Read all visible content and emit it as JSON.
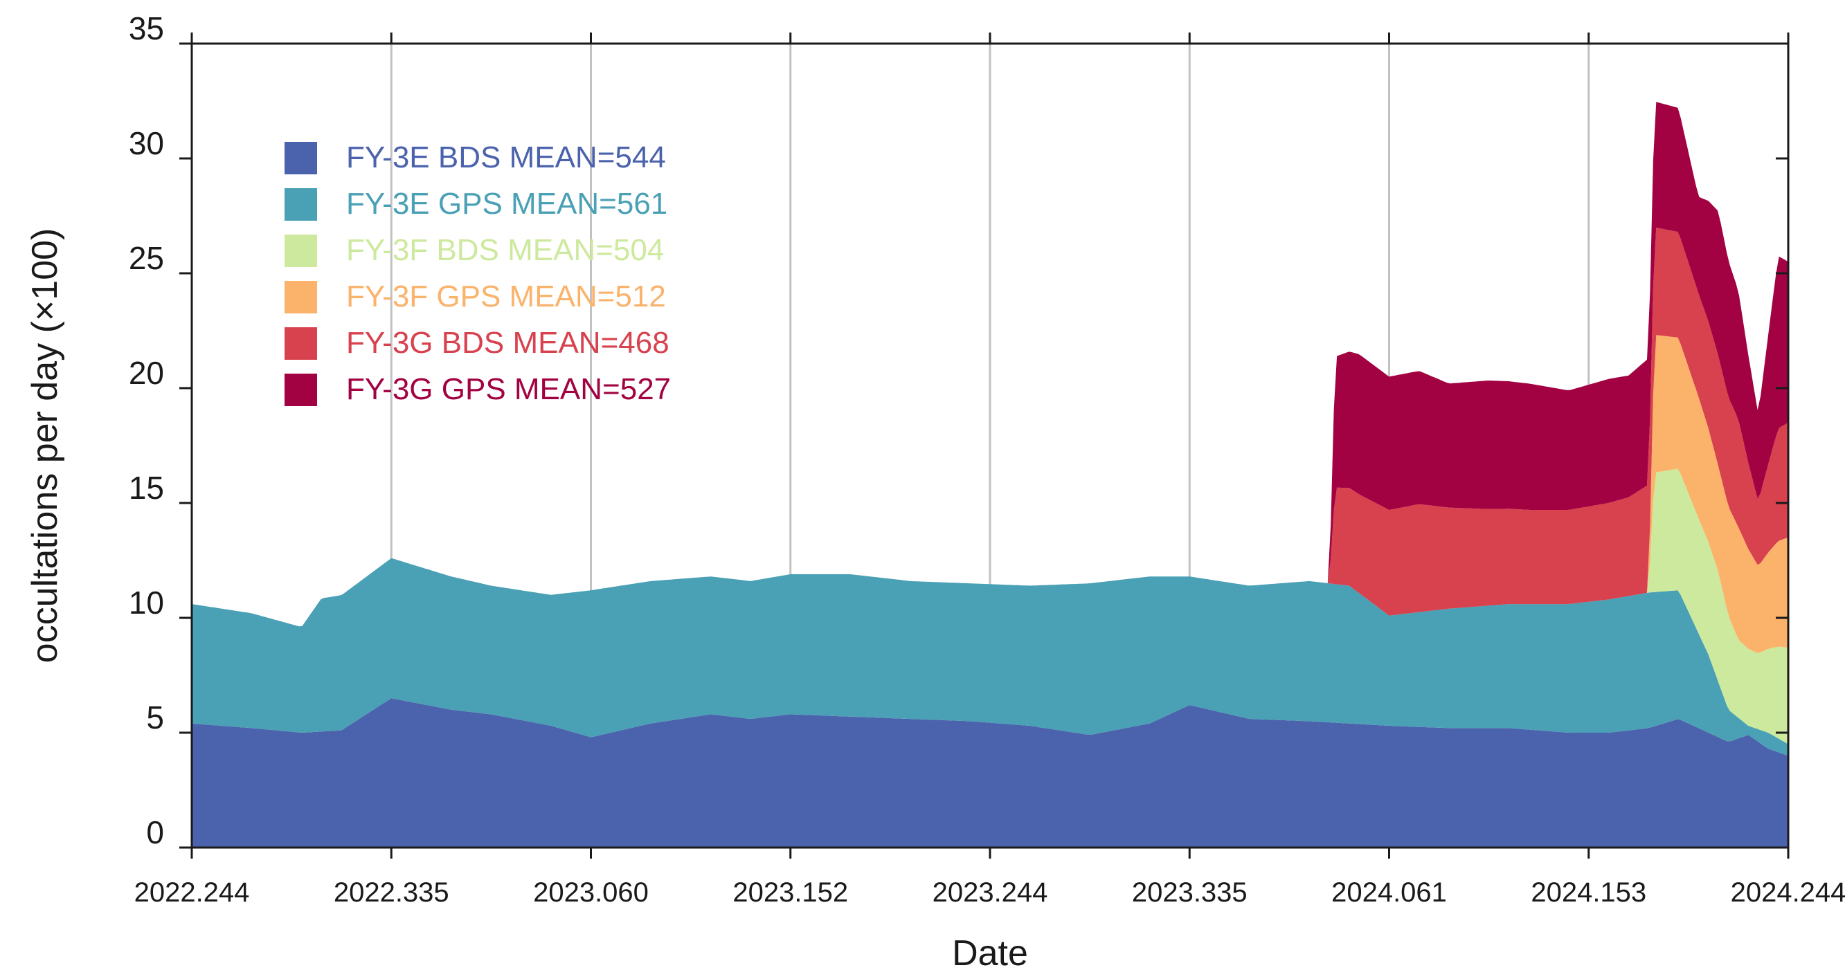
{
  "chart_data": {
    "type": "area",
    "stacked": true,
    "title": "",
    "xlabel": "Date",
    "ylabel": "occultations per day (×100)",
    "x_range": [
      0,
      8
    ],
    "xlim_labels": [
      "2022.244",
      "2022.335",
      "2023.060",
      "2023.152",
      "2023.244",
      "2023.335",
      "2024.061",
      "2024.153",
      "2024.244"
    ],
    "ylim": [
      0,
      35
    ],
    "yticks": [
      0,
      5,
      10,
      15,
      20,
      25,
      30,
      35
    ],
    "ytick_labels": [
      "0",
      "5",
      "10",
      "15",
      "20",
      "25",
      "30",
      "35"
    ],
    "grid": "vertical",
    "legend_position": "top-left",
    "series": [
      {
        "name": "FY-3E BDS MEAN=544",
        "color": "#4b62ac",
        "points": [
          [
            0,
            5.4
          ],
          [
            0.3,
            5.2
          ],
          [
            0.55,
            5.0
          ],
          [
            0.75,
            5.1
          ],
          [
            1.0,
            6.5
          ],
          [
            1.3,
            6.0
          ],
          [
            1.5,
            5.8
          ],
          [
            1.8,
            5.3
          ],
          [
            2.0,
            4.8
          ],
          [
            2.3,
            5.4
          ],
          [
            2.6,
            5.8
          ],
          [
            2.8,
            5.6
          ],
          [
            3.0,
            5.8
          ],
          [
            3.3,
            5.7
          ],
          [
            3.6,
            5.6
          ],
          [
            3.9,
            5.5
          ],
          [
            4.2,
            5.3
          ],
          [
            4.5,
            4.9
          ],
          [
            4.8,
            5.4
          ],
          [
            5.0,
            6.2
          ],
          [
            5.3,
            5.6
          ],
          [
            5.6,
            5.5
          ],
          [
            5.8,
            5.4
          ],
          [
            6.0,
            5.3
          ],
          [
            6.3,
            5.2
          ],
          [
            6.6,
            5.2
          ],
          [
            6.9,
            5.0
          ],
          [
            7.1,
            5.0
          ],
          [
            7.3,
            5.2
          ],
          [
            7.45,
            5.6
          ],
          [
            7.6,
            5.0
          ],
          [
            7.7,
            4.6
          ],
          [
            7.8,
            4.9
          ],
          [
            7.9,
            4.3
          ],
          [
            8.0,
            4.0
          ]
        ]
      },
      {
        "name": "FY-3E GPS MEAN=561",
        "color": "#4aa0b5",
        "points": [
          [
            0,
            5.2
          ],
          [
            0.3,
            5.0
          ],
          [
            0.55,
            4.6
          ],
          [
            0.65,
            5.8
          ],
          [
            1.0,
            6.1
          ],
          [
            1.3,
            5.8
          ],
          [
            1.5,
            5.6
          ],
          [
            1.8,
            5.7
          ],
          [
            2.0,
            6.4
          ],
          [
            2.3,
            6.2
          ],
          [
            2.6,
            6.0
          ],
          [
            2.8,
            6.0
          ],
          [
            3.0,
            6.1
          ],
          [
            3.3,
            6.2
          ],
          [
            3.6,
            6.0
          ],
          [
            3.9,
            6.0
          ],
          [
            4.2,
            6.1
          ],
          [
            4.5,
            6.6
          ],
          [
            4.8,
            6.4
          ],
          [
            5.0,
            5.6
          ],
          [
            5.3,
            5.8
          ],
          [
            5.6,
            6.1
          ],
          [
            5.8,
            6.0
          ],
          [
            6.0,
            4.8
          ],
          [
            6.3,
            5.2
          ],
          [
            6.6,
            5.4
          ],
          [
            6.9,
            5.6
          ],
          [
            7.1,
            5.8
          ],
          [
            7.3,
            5.9
          ],
          [
            7.45,
            5.6
          ],
          [
            7.6,
            3.4
          ],
          [
            7.7,
            1.4
          ],
          [
            7.8,
            0.4
          ],
          [
            7.9,
            0.7
          ],
          [
            8.0,
            0.5
          ]
        ]
      },
      {
        "name": "FY-3F BDS MEAN=504",
        "color": "#cde99d",
        "points": [
          [
            0,
            0
          ],
          [
            7.3,
            0
          ],
          [
            7.33,
            5.2
          ],
          [
            7.45,
            5.3
          ],
          [
            7.55,
            5.0
          ],
          [
            7.65,
            4.8
          ],
          [
            7.75,
            3.4
          ],
          [
            7.85,
            3.3
          ],
          [
            7.95,
            4.0
          ],
          [
            8.0,
            4.2
          ]
        ]
      },
      {
        "name": "FY-3F GPS MEAN=512",
        "color": "#fbb36b",
        "points": [
          [
            0,
            0
          ],
          [
            7.3,
            0
          ],
          [
            7.33,
            6.0
          ],
          [
            7.45,
            5.7
          ],
          [
            7.55,
            5.3
          ],
          [
            7.65,
            4.6
          ],
          [
            7.75,
            4.9
          ],
          [
            7.85,
            3.8
          ],
          [
            7.95,
            4.6
          ],
          [
            8.0,
            4.8
          ]
        ]
      },
      {
        "name": "FY-3G BDS MEAN=468",
        "color": "#d8414e",
        "points": [
          [
            0,
            0
          ],
          [
            5.7,
            0
          ],
          [
            5.73,
            4.2
          ],
          [
            5.85,
            4.3
          ],
          [
            6.0,
            4.6
          ],
          [
            6.15,
            4.7
          ],
          [
            6.3,
            4.4
          ],
          [
            6.5,
            4.2
          ],
          [
            6.7,
            4.1
          ],
          [
            6.9,
            4.1
          ],
          [
            7.1,
            4.2
          ],
          [
            7.2,
            4.3
          ],
          [
            7.3,
            4.7
          ],
          [
            7.45,
            4.6
          ],
          [
            7.55,
            4.5
          ],
          [
            7.65,
            4.8
          ],
          [
            7.75,
            4.7
          ],
          [
            7.85,
            2.8
          ],
          [
            7.95,
            4.9
          ],
          [
            8.0,
            5.0
          ]
        ]
      },
      {
        "name": "FY-3G GPS MEAN=527",
        "color": "#a20241",
        "points": [
          [
            0,
            0
          ],
          [
            5.7,
            0
          ],
          [
            5.73,
            5.7
          ],
          [
            5.85,
            6.1
          ],
          [
            6.0,
            5.8
          ],
          [
            6.15,
            5.8
          ],
          [
            6.3,
            5.4
          ],
          [
            6.5,
            5.6
          ],
          [
            6.7,
            5.5
          ],
          [
            6.9,
            5.2
          ],
          [
            7.1,
            5.4
          ],
          [
            7.2,
            5.3
          ],
          [
            7.3,
            5.5
          ],
          [
            7.45,
            5.4
          ],
          [
            7.55,
            4.2
          ],
          [
            7.65,
            6.3
          ],
          [
            7.75,
            5.6
          ],
          [
            7.85,
            3.8
          ],
          [
            7.95,
            7.5
          ],
          [
            8.0,
            7.0
          ]
        ]
      }
    ]
  }
}
